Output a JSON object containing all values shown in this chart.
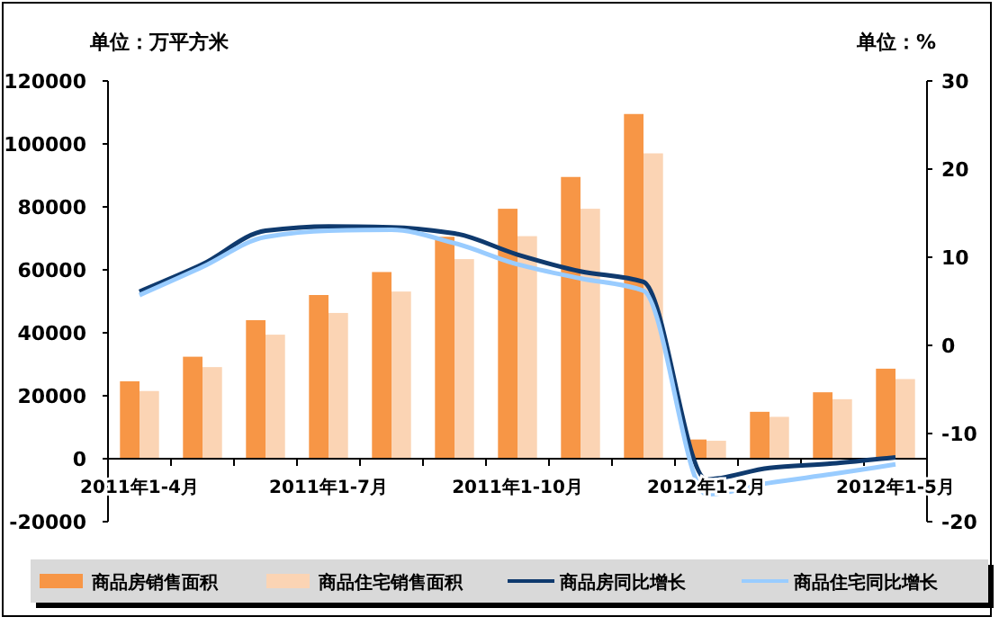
{
  "chart_data": {
    "type": "bar",
    "ylabel": "单位：万平方米",
    "y2label": "单位：%",
    "categories": [
      "2011年1-4月",
      null,
      null,
      "2011年1-7月",
      null,
      null,
      "2011年1-10月",
      null,
      null,
      "2012年1-2月",
      null,
      null,
      "2012年1-5月"
    ],
    "series": [
      {
        "name": "商品房销售面积",
        "color": "#f79646",
        "values": [
          24600,
          32400,
          44000,
          52000,
          59300,
          70500,
          79400,
          89500,
          109500,
          6100,
          14900,
          21100,
          28600
        ]
      },
      {
        "name": "商品住宅销售面积",
        "color": "#fbd4b4",
        "values": [
          21500,
          29100,
          39400,
          46300,
          53100,
          63400,
          70700,
          79400,
          97000,
          5700,
          13300,
          18900,
          25300
        ]
      },
      {
        "name": "商品房同比增长",
        "type": "line",
        "axis": "y2",
        "color": "#0f3a6e",
        "values": [
          6.1,
          9.2,
          13.0,
          13.5,
          13.4,
          12.7,
          10.3,
          8.4,
          7.2,
          -15.2,
          -13.9,
          -13.4,
          -12.7
        ]
      },
      {
        "name": "商品住宅同比增长",
        "type": "line",
        "axis": "y2",
        "color": "#99ccff",
        "values": [
          5.7,
          8.9,
          12.3,
          13.0,
          13.1,
          11.6,
          9.2,
          7.6,
          6.2,
          -16.9,
          -15.6,
          -14.6,
          -13.5
        ]
      }
    ],
    "ylim": [
      -20000,
      120000
    ],
    "yticks": [
      -20000,
      0,
      20000,
      40000,
      60000,
      80000,
      100000,
      120000
    ],
    "y2lim": [
      -20,
      30
    ],
    "y2ticks": [
      -20,
      -10,
      0,
      10,
      20,
      30
    ],
    "grid": false,
    "legend": "bottom",
    "line_style": "solid",
    "marker": "none"
  }
}
